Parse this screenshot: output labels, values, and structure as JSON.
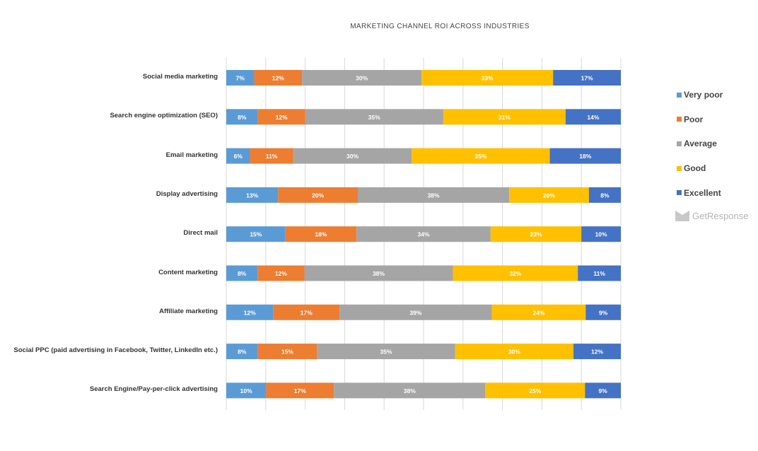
{
  "chart_data": {
    "type": "bar",
    "orientation": "horizontal",
    "stacked": true,
    "title": "MARKETING CHANNEL ROI ACROSS INDUSTRIES",
    "xlabel": "",
    "ylabel": "",
    "xlim": [
      0,
      100
    ],
    "grid": true,
    "legend_position": "right",
    "categories": [
      "Social media marketing",
      "Search engine optimization (SEO)",
      "Email marketing",
      "Display advertising",
      "Direct mail",
      "Content marketing",
      "Affiliate marketing",
      "Social PPC  (paid advertising in Facebook, Twitter, LinkedIn etc.)",
      "Search Engine/Pay-per-click advertising"
    ],
    "series": [
      {
        "name": "Very poor",
        "color": "#5b9bd5",
        "values": [
          7,
          8,
          6,
          13,
          15,
          8,
          12,
          8,
          10
        ],
        "labels": [
          "7%",
          "8%",
          "6%",
          "13%",
          "15%",
          "8%",
          "12%",
          "8%",
          "10%"
        ]
      },
      {
        "name": "Poor",
        "color": "#ed7d31",
        "values": [
          12,
          12,
          11,
          20,
          18,
          12,
          17,
          15,
          17
        ],
        "labels": [
          "12%",
          "12%",
          "11%",
          "20%",
          "18%",
          "12%",
          "17%",
          "15%",
          "17%"
        ]
      },
      {
        "name": "Average",
        "color": "#a5a5a5",
        "values": [
          30,
          35,
          30,
          38,
          34,
          38,
          39,
          35,
          38
        ],
        "labels": [
          "30%",
          "35%",
          "30%",
          "38%",
          "34%",
          "38%",
          "39%",
          "35%",
          "38%"
        ]
      },
      {
        "name": "Good",
        "color": "#ffc000",
        "values": [
          33,
          31,
          35,
          20,
          23,
          32,
          24,
          30,
          25
        ],
        "labels": [
          "33%",
          "31%",
          "35%",
          "20%",
          "23%",
          "32%",
          "24%",
          "30%",
          "25%"
        ]
      },
      {
        "name": "Excellent",
        "color": "#4472c4",
        "values": [
          17,
          14,
          18,
          8,
          10,
          11,
          9,
          12,
          9
        ],
        "labels": [
          "17%",
          "14%",
          "18%",
          "8%",
          "10%",
          "11%",
          "9%",
          "12%",
          "9%"
        ]
      }
    ]
  },
  "branding": {
    "logo_text": "GetResponse",
    "logo_icon": "envelope-icon"
  }
}
